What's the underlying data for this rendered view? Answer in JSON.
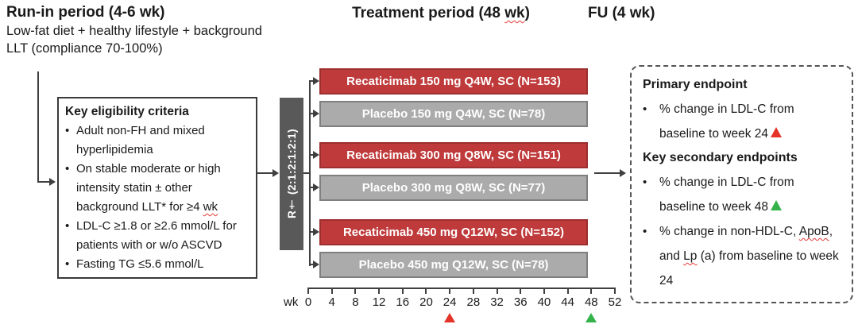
{
  "headers": {
    "runin_title": "Run-in period (4-6 wk)",
    "runin_sub": "Low-fat diet + healthy lifestyle + background LLT (compliance 70-100%)",
    "treatment_pre": "Treatment period (48 ",
    "treatment_wk": "wk",
    "treatment_post": ")",
    "fu_title": "FU (4 wk)"
  },
  "eligibility": {
    "title": "Key eligibility criteria",
    "bullet_marker": "•",
    "bullets": [
      {
        "pre": "Adult non-FH and mixed hyperlipidemia"
      },
      {
        "pre": "On stable moderate or high intensity statin ± other background LLT* for ≥4 ",
        "sq": "wk"
      },
      {
        "pre": "LDL-C ≥1.8 or ≥2.6 mmol/L for patients with or w/o ASCVD"
      },
      {
        "pre": "Fasting TG ≤5.6 mmol/L"
      }
    ]
  },
  "randomization": {
    "label": "R† (2:1:2:1:2:1)"
  },
  "arms": [
    {
      "label": "Recaticimab 150 mg Q4W, SC (N=153)",
      "type": "active"
    },
    {
      "label": "Placebo 150 mg Q4W, SC (N=78)",
      "type": "placebo"
    },
    {
      "label": "Recaticimab 300 mg Q8W, SC (N=151)",
      "type": "active"
    },
    {
      "label": "Placebo 300 mg Q8W, SC (N=77)",
      "type": "placebo"
    },
    {
      "label": "Recaticimab 450 mg Q12W, SC (N=152)",
      "type": "active"
    },
    {
      "label": "Placebo 450 mg Q12W, SC (N=78)",
      "type": "placebo"
    }
  ],
  "axis": {
    "unit_label": "wk",
    "ticks": [
      "0",
      "4",
      "8",
      "12",
      "16",
      "20",
      "24",
      "28",
      "32",
      "36",
      "40",
      "44",
      "48",
      "52"
    ],
    "markers": [
      {
        "at_week": "24",
        "color": "#e63329"
      },
      {
        "at_week": "48",
        "color": "#33b34a"
      }
    ]
  },
  "endpoints": {
    "primary_title": "Primary endpoint",
    "secondary_title": "Key secondary endpoints",
    "bullet_marker": "•",
    "items": [
      {
        "pre": "% change in LDL-C from baseline to week 24",
        "marker": "red-triangle"
      },
      {
        "pre": "% change in LDL-C from baseline to week 48",
        "marker": "green-triangle"
      },
      {
        "seg1": "% change in non-HDL-C, ",
        "sq1": "ApoB",
        "seg2": ", and ",
        "sq2": "Lp",
        "seg3": " (a) from baseline to week 24"
      }
    ]
  },
  "colors": {
    "active_arm": "#bf3a3b",
    "placebo_arm": "#ababab",
    "randomization_bar": "#595959",
    "marker_week24": "#e63329",
    "marker_week48": "#33b34a"
  }
}
